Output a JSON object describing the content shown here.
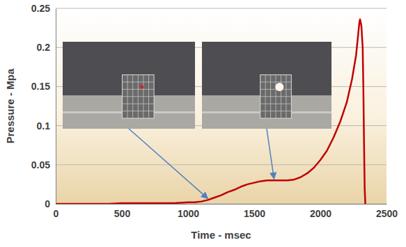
{
  "chart_data": {
    "type": "line",
    "x_label": "Time - msec",
    "y_label": "Pressure - Mpa",
    "x": [
      0,
      100,
      200,
      300,
      400,
      500,
      600,
      700,
      800,
      900,
      1000,
      1050,
      1100,
      1150,
      1200,
      1250,
      1300,
      1350,
      1400,
      1450,
      1500,
      1550,
      1600,
      1650,
      1700,
      1750,
      1800,
      1850,
      1900,
      1950,
      2000,
      2050,
      2100,
      2150,
      2200,
      2240,
      2270,
      2285,
      2295,
      2300,
      2310,
      2320,
      2325,
      2330,
      2335,
      2340
    ],
    "values": [
      0,
      0,
      0,
      0,
      0,
      0.001,
      0.001,
      0.001,
      0.001,
      0.001,
      0.002,
      0.002,
      0.003,
      0.005,
      0.008,
      0.011,
      0.015,
      0.018,
      0.022,
      0.025,
      0.027,
      0.029,
      0.03,
      0.03,
      0.03,
      0.03,
      0.031,
      0.034,
      0.039,
      0.046,
      0.056,
      0.068,
      0.085,
      0.105,
      0.13,
      0.16,
      0.19,
      0.215,
      0.232,
      0.236,
      0.228,
      0.2,
      0.15,
      0.08,
      0.02,
      0
    ],
    "color": "#c00000",
    "xlim": [
      0,
      2500
    ],
    "ylim": [
      0,
      0.25
    ],
    "xticks": [
      0,
      500,
      1000,
      1500,
      2000,
      2500
    ],
    "yticks": [
      0,
      0.05,
      0.1,
      0.15,
      0.2,
      0.25
    ],
    "grid": true
  }
}
